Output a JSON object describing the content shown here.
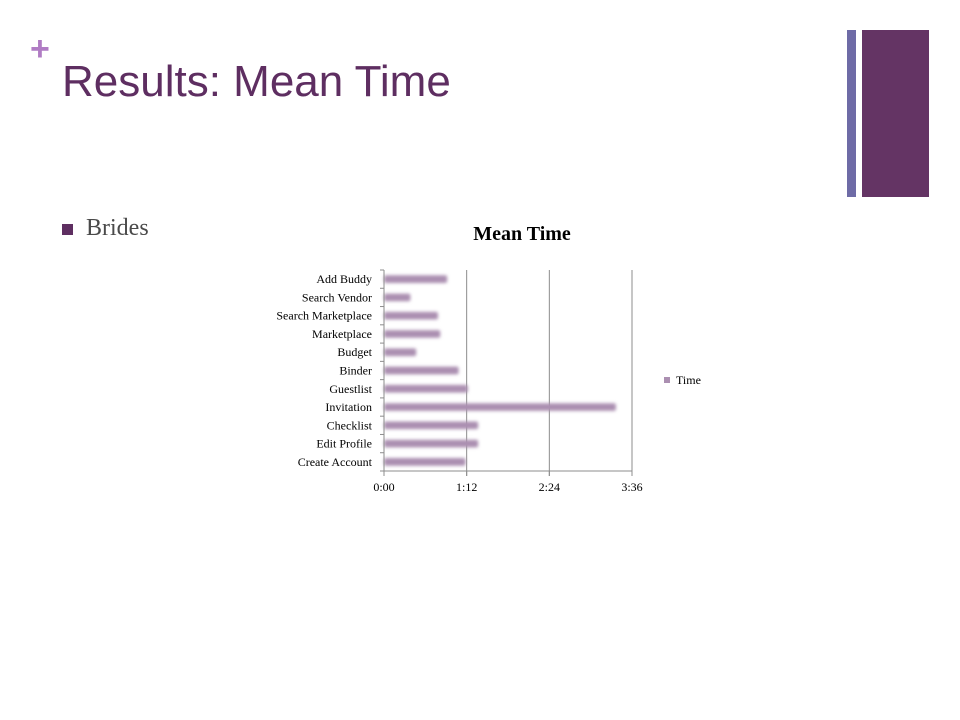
{
  "slide": {
    "plus_symbol": "+",
    "title": "Results: Mean Time",
    "bullet": "Brides"
  },
  "colors": {
    "title": "#5e2e61",
    "plus": "#b07cc4",
    "accent_thin": "#6e6ba6",
    "accent_thick": "#643464",
    "bar": "#ab8fb1"
  },
  "chart_data": {
    "type": "bar",
    "orientation": "horizontal",
    "title": "Mean Time",
    "categories": [
      "Add Buddy",
      "Search Vendor",
      "Search Marketplace",
      "Marketplace",
      "Budget",
      "Binder",
      "Guestlist",
      "Invitation",
      "Checklist",
      "Edit Profile",
      "Create Account"
    ],
    "series": [
      {
        "name": "Time",
        "values_seconds": [
          55,
          23,
          47,
          49,
          28,
          65,
          73,
          202,
          82,
          82,
          71
        ]
      }
    ],
    "x_axis": {
      "ticks": [
        "0:00",
        "1:12",
        "2:24",
        "3:36"
      ],
      "tick_values_seconds": [
        0,
        72,
        144,
        216
      ],
      "range_seconds": [
        0,
        216
      ]
    },
    "gridlines": true,
    "legend_position": "right"
  }
}
